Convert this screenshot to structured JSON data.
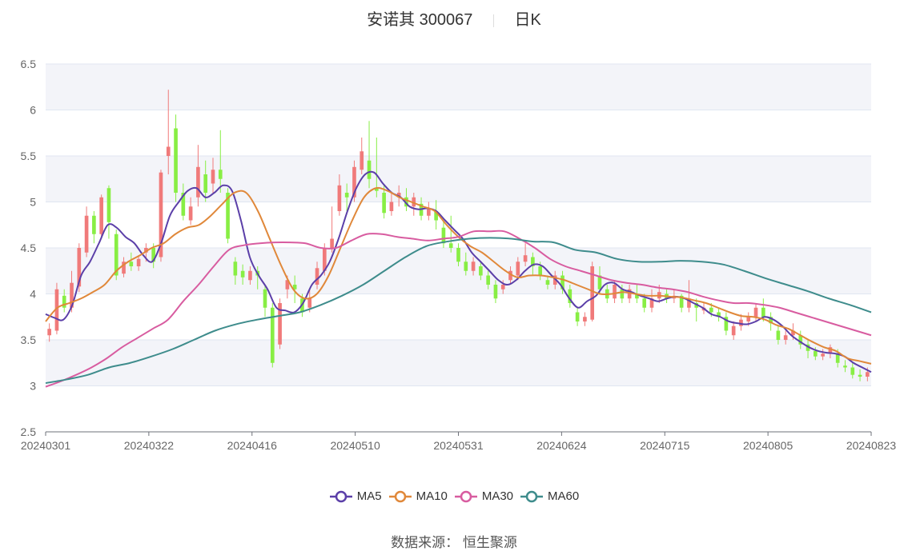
{
  "title": {
    "stock_name": "安诺其",
    "stock_code": "300067",
    "period": "日K"
  },
  "source": {
    "label": "数据来源：",
    "value": "恒生聚源"
  },
  "chart_data": {
    "type": "candlestick",
    "ylim": [
      2.5,
      6.5
    ],
    "yticks": [
      2.5,
      3,
      3.5,
      4,
      4.5,
      5,
      5.5,
      6,
      6.5
    ],
    "x_tick_labels": [
      "20240301",
      "20240322",
      "20240416",
      "20240510",
      "20240531",
      "20240624",
      "20240715",
      "20240805",
      "20240823"
    ],
    "x_tick_index": [
      0,
      15,
      30,
      45,
      60,
      75,
      90,
      105,
      120
    ],
    "grid": true,
    "legend_position": "bottom",
    "up_color": "#f07a7a",
    "down_color": "#88ee44",
    "candles": [
      [
        3.55,
        3.62,
        3.48,
        3.68
      ],
      [
        3.6,
        4.05,
        3.56,
        4.12
      ],
      [
        3.98,
        3.85,
        3.8,
        4.05
      ],
      [
        3.85,
        4.12,
        3.8,
        4.25
      ],
      [
        4.08,
        4.5,
        4.02,
        4.55
      ],
      [
        4.45,
        4.85,
        4.4,
        4.95
      ],
      [
        4.85,
        4.65,
        4.55,
        4.9
      ],
      [
        4.65,
        5.05,
        4.6,
        5.08
      ],
      [
        5.15,
        4.78,
        4.6,
        5.18
      ],
      [
        4.65,
        4.2,
        4.15,
        4.7
      ],
      [
        4.22,
        4.35,
        4.18,
        4.4
      ],
      [
        4.35,
        4.3,
        4.25,
        4.45
      ],
      [
        4.3,
        4.38,
        4.25,
        4.42
      ],
      [
        4.45,
        4.5,
        4.35,
        4.55
      ],
      [
        4.5,
        4.35,
        4.28,
        4.55
      ],
      [
        4.4,
        5.32,
        4.35,
        5.35
      ],
      [
        5.5,
        5.6,
        5.3,
        6.22
      ],
      [
        5.8,
        5.1,
        5.0,
        5.95
      ],
      [
        5.1,
        4.85,
        4.8,
        5.2
      ],
      [
        4.8,
        4.95,
        4.75,
        5.05
      ],
      [
        5.05,
        5.38,
        4.95,
        5.62
      ],
      [
        5.3,
        5.1,
        5.0,
        5.45
      ],
      [
        5.2,
        5.35,
        5.1,
        5.48
      ],
      [
        5.35,
        5.25,
        5.1,
        5.78
      ],
      [
        5.1,
        4.6,
        4.55,
        5.15
      ],
      [
        4.35,
        4.2,
        4.1,
        4.4
      ],
      [
        4.25,
        4.18,
        4.1,
        4.32
      ],
      [
        4.15,
        4.25,
        4.1,
        4.3
      ],
      [
        4.25,
        4.2,
        4.05,
        4.3
      ],
      [
        4.05,
        3.85,
        3.75,
        4.1
      ],
      [
        3.85,
        3.25,
        3.2,
        3.9
      ],
      [
        3.45,
        3.9,
        3.4,
        3.95
      ],
      [
        4.05,
        4.15,
        3.95,
        4.2
      ],
      [
        4.1,
        4.05,
        3.9,
        4.2
      ],
      [
        3.95,
        3.8,
        3.75,
        4.0
      ],
      [
        3.85,
        3.95,
        3.8,
        4.05
      ],
      [
        4.1,
        4.28,
        4.05,
        4.35
      ],
      [
        4.25,
        4.5,
        4.2,
        4.55
      ],
      [
        4.5,
        4.6,
        4.45,
        4.95
      ],
      [
        4.9,
        5.18,
        4.85,
        5.3
      ],
      [
        5.1,
        5.05,
        4.9,
        5.2
      ],
      [
        5.05,
        5.38,
        5.0,
        5.45
      ],
      [
        5.35,
        5.55,
        5.3,
        5.7
      ],
      [
        5.45,
        5.25,
        5.15,
        5.88
      ],
      [
        5.15,
        5.12,
        5.05,
        5.7
      ],
      [
        5.1,
        4.88,
        4.82,
        5.18
      ],
      [
        4.9,
        5.0,
        4.85,
        5.1
      ],
      [
        5.05,
        5.1,
        4.95,
        5.18
      ],
      [
        5.05,
        4.95,
        4.9,
        5.15
      ],
      [
        4.95,
        5.05,
        4.85,
        5.1
      ],
      [
        4.98,
        4.85,
        4.8,
        5.05
      ],
      [
        4.85,
        4.92,
        4.8,
        5.0
      ],
      [
        4.9,
        4.8,
        4.7,
        5.02
      ],
      [
        4.72,
        4.55,
        4.5,
        4.8
      ],
      [
        4.55,
        4.5,
        4.45,
        4.85
      ],
      [
        4.5,
        4.35,
        4.3,
        4.55
      ],
      [
        4.35,
        4.25,
        4.2,
        4.45
      ],
      [
        4.25,
        4.35,
        4.2,
        4.4
      ],
      [
        4.3,
        4.2,
        4.15,
        4.35
      ],
      [
        4.2,
        4.1,
        4.05,
        4.25
      ],
      [
        4.1,
        3.95,
        3.9,
        4.15
      ],
      [
        4.05,
        4.1,
        4.0,
        4.15
      ],
      [
        4.15,
        4.25,
        4.1,
        4.3
      ],
      [
        4.2,
        4.35,
        4.15,
        4.4
      ],
      [
        4.35,
        4.42,
        4.3,
        4.55
      ],
      [
        4.4,
        4.3,
        4.2,
        4.45
      ],
      [
        4.3,
        4.2,
        4.15,
        4.35
      ],
      [
        4.15,
        4.1,
        4.05,
        4.2
      ],
      [
        4.1,
        4.2,
        4.05,
        4.25
      ],
      [
        4.2,
        4.05,
        4.0,
        4.25
      ],
      [
        4.05,
        3.9,
        3.85,
        4.1
      ],
      [
        3.8,
        3.7,
        3.65,
        3.85
      ],
      [
        3.7,
        3.75,
        3.65,
        3.8
      ],
      [
        3.72,
        4.3,
        3.7,
        4.35
      ],
      [
        4.2,
        4.05,
        4.0,
        4.3
      ],
      [
        4.05,
        3.95,
        3.9,
        4.1
      ],
      [
        3.95,
        4.1,
        3.9,
        4.15
      ],
      [
        4.05,
        3.95,
        3.9,
        4.1
      ],
      [
        3.95,
        4.05,
        3.9,
        4.1
      ],
      [
        4.0,
        3.95,
        3.9,
        4.1
      ],
      [
        3.95,
        3.85,
        3.8,
        4.0
      ],
      [
        3.85,
        3.95,
        3.8,
        4.05
      ],
      [
        3.95,
        4.02,
        3.9,
        4.1
      ],
      [
        4.0,
        3.95,
        3.9,
        4.05
      ],
      [
        3.95,
        3.98,
        3.9,
        4.05
      ],
      [
        3.98,
        3.85,
        3.8,
        4.0
      ],
      [
        3.85,
        3.95,
        3.8,
        4.15
      ],
      [
        3.9,
        3.85,
        3.7,
        3.95
      ],
      [
        3.82,
        3.85,
        3.78,
        3.9
      ],
      [
        3.85,
        3.8,
        3.75,
        3.9
      ],
      [
        3.8,
        3.75,
        3.7,
        3.85
      ],
      [
        3.75,
        3.6,
        3.55,
        3.8
      ],
      [
        3.55,
        3.65,
        3.5,
        3.7
      ],
      [
        3.65,
        3.72,
        3.6,
        3.78
      ],
      [
        3.7,
        3.75,
        3.65,
        3.8
      ],
      [
        3.75,
        3.85,
        3.7,
        3.9
      ],
      [
        3.85,
        3.75,
        3.7,
        3.95
      ],
      [
        3.75,
        3.68,
        3.6,
        3.8
      ],
      [
        3.6,
        3.5,
        3.45,
        3.65
      ],
      [
        3.5,
        3.55,
        3.45,
        3.6
      ],
      [
        3.55,
        3.6,
        3.5,
        3.68
      ],
      [
        3.55,
        3.45,
        3.4,
        3.6
      ],
      [
        3.45,
        3.38,
        3.3,
        3.5
      ],
      [
        3.38,
        3.32,
        3.28,
        3.42
      ],
      [
        3.32,
        3.35,
        3.28,
        3.4
      ],
      [
        3.35,
        3.42,
        3.3,
        3.45
      ],
      [
        3.35,
        3.25,
        3.2,
        3.4
      ],
      [
        3.22,
        3.2,
        3.15,
        3.28
      ],
      [
        3.2,
        3.12,
        3.08,
        3.25
      ],
      [
        3.12,
        3.1,
        3.05,
        3.18
      ],
      [
        3.1,
        3.15,
        3.05,
        3.2
      ]
    ],
    "series": [
      {
        "name": "MA5",
        "color": "#5b3fa8",
        "values": [
          3.78,
          3.74,
          3.72,
          3.88,
          4.2,
          4.35,
          4.55,
          4.75,
          4.72,
          4.62,
          4.55,
          4.42,
          4.35,
          4.55,
          4.85,
          5.0,
          5.12,
          5.15,
          5.05,
          5.1,
          5.18,
          5.12,
          4.8,
          4.4,
          4.2,
          4.05,
          3.85,
          3.82,
          3.8,
          3.9,
          4.1,
          4.2,
          4.35,
          4.6,
          4.9,
          5.15,
          5.3,
          5.32,
          5.2,
          5.1,
          5.05,
          4.95,
          4.92,
          4.93,
          4.9,
          4.8,
          4.7,
          4.6,
          4.45,
          4.35,
          4.25,
          4.15,
          4.1,
          4.15,
          4.25,
          4.32,
          4.3,
          4.2,
          4.1,
          3.95,
          3.85,
          3.92,
          3.98,
          4.1,
          4.12,
          4.05,
          4.02,
          3.98,
          3.95,
          3.92,
          3.95,
          3.97,
          3.95,
          3.9,
          3.85,
          3.78,
          3.75,
          3.7,
          3.68,
          3.67,
          3.7,
          3.75,
          3.72,
          3.65,
          3.55,
          3.48,
          3.42,
          3.38,
          3.36,
          3.35,
          3.32,
          3.25,
          3.2,
          3.15
        ]
      },
      {
        "name": "MA10",
        "color": "#e0883a",
        "values": [
          3.7,
          3.85,
          3.9,
          3.95,
          4.02,
          4.1,
          4.25,
          4.35,
          4.42,
          4.5,
          4.55,
          4.65,
          4.72,
          4.75,
          4.85,
          4.98,
          5.1,
          5.1,
          4.9,
          4.6,
          4.3,
          4.05,
          3.95,
          4.0,
          4.2,
          4.5,
          4.8,
          5.05,
          5.15,
          5.12,
          5.05,
          5.0,
          4.95,
          4.9,
          4.75,
          4.62,
          4.52,
          4.45,
          4.35,
          4.25,
          4.18,
          4.2,
          4.2,
          4.18,
          4.15,
          4.1,
          4.05,
          4.0,
          4.0,
          4.02,
          4.0,
          3.98,
          3.98,
          3.97,
          3.96,
          3.93,
          3.9,
          3.85,
          3.8,
          3.76,
          3.75,
          3.72,
          3.66,
          3.62,
          3.55,
          3.48,
          3.42,
          3.38,
          3.3,
          3.27,
          3.24
        ]
      },
      {
        "name": "MA30",
        "color": "#d85ca0",
        "values": [
          2.99,
          3.05,
          3.12,
          3.2,
          3.3,
          3.42,
          3.52,
          3.62,
          3.72,
          3.92,
          4.1,
          4.3,
          4.48,
          4.53,
          4.55,
          4.56,
          4.56,
          4.55,
          4.5,
          4.5,
          4.58,
          4.65,
          4.65,
          4.62,
          4.6,
          4.58,
          4.6,
          4.62,
          4.68,
          4.68,
          4.68,
          4.6,
          4.5,
          4.38,
          4.3,
          4.25,
          4.2,
          4.15,
          4.12,
          4.1,
          4.07,
          4.05,
          4.02,
          3.97,
          3.93,
          3.9,
          3.9,
          3.88,
          3.85,
          3.8,
          3.75,
          3.7,
          3.65,
          3.6,
          3.55
        ]
      },
      {
        "name": "MA60",
        "color": "#3e8c8c",
        "values": [
          3.03,
          3.07,
          3.12,
          3.2,
          3.25,
          3.32,
          3.4,
          3.5,
          3.6,
          3.67,
          3.72,
          3.76,
          3.8,
          3.88,
          3.98,
          4.1,
          4.25,
          4.4,
          4.52,
          4.57,
          4.6,
          4.61,
          4.6,
          4.57,
          4.56,
          4.48,
          4.45,
          4.38,
          4.35,
          4.35,
          4.36,
          4.35,
          4.32,
          4.25,
          4.17,
          4.1,
          4.03,
          3.95,
          3.88,
          3.8
        ]
      }
    ]
  }
}
